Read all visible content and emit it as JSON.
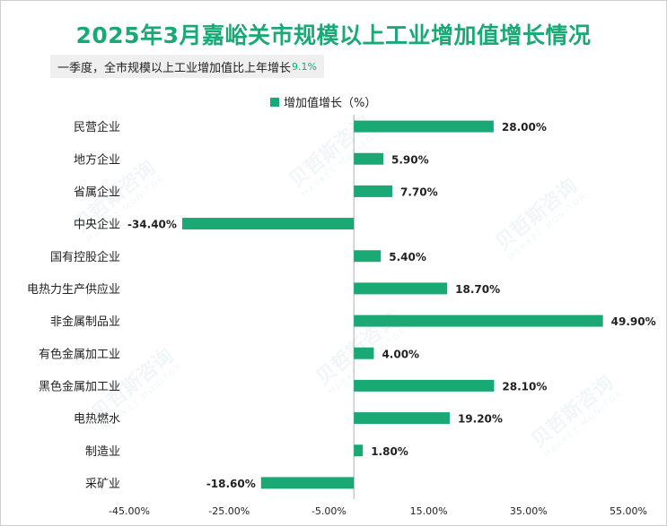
{
  "title": "2025年3月嘉峪关市规模以上工业增加值增长情况",
  "subtitle": {
    "text": "一季度，全市规模以上工业增加值比上年增长",
    "value": "9.1%"
  },
  "watermark": {
    "brand": "贝哲斯咨询",
    "brand_en": "MARKET MONITOR"
  },
  "colors": {
    "bar": "#1aa875",
    "title": "#1aa875",
    "axis": "#b0b0b0"
  },
  "chart_data": {
    "type": "bar",
    "orientation": "horizontal",
    "legend": {
      "label": "增加值增长（%）",
      "position": "top"
    },
    "categories": [
      "民营企业",
      "地方企业",
      "省属企业",
      "中央企业",
      "国有控股企业",
      "电热力生产供应业",
      "非金属制品业",
      "有色金属加工业",
      "黑色金属加工业",
      "电热燃水",
      "制造业",
      "采矿业"
    ],
    "values": [
      28.0,
      5.9,
      7.7,
      -34.4,
      5.4,
      18.7,
      49.9,
      4.0,
      28.1,
      19.2,
      1.8,
      -18.6
    ],
    "value_labels": [
      "28.00%",
      "5.90%",
      "7.70%",
      "-34.40%",
      "5.40%",
      "18.70%",
      "49.90%",
      "4.00%",
      "28.10%",
      "19.20%",
      "1.80%",
      "-18.60%"
    ],
    "xlim": [
      -45,
      55
    ],
    "xticks": [
      -45,
      -25,
      -5,
      15,
      35,
      55
    ],
    "xtick_labels": [
      "-45.00%",
      "-25.00%",
      "-5.00%",
      "15.00%",
      "35.00%",
      "55.00%"
    ],
    "grid": false
  }
}
